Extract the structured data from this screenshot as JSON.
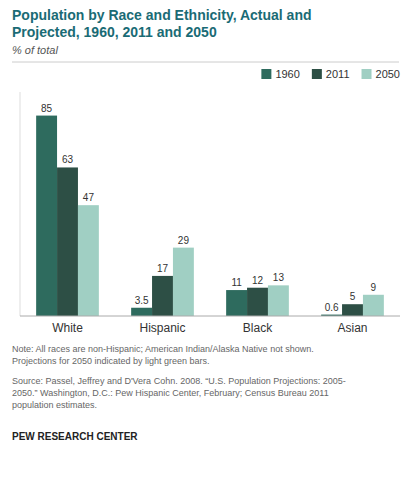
{
  "chart_data": {
    "type": "bar",
    "title": "Population by Race and Ethnicity, Actual and\nProjected, 1960, 2011 and 2050",
    "ylabel": "% of total",
    "categories": [
      "White",
      "Hispanic",
      "Black",
      "Asian"
    ],
    "series": [
      {
        "name": "1960",
        "color": "#2e6b5e",
        "values": [
          85,
          3.5,
          11,
          0.6
        ]
      },
      {
        "name": "2011",
        "color": "#2d4f45",
        "values": [
          63,
          17,
          12,
          5
        ]
      },
      {
        "name": "2050",
        "color": "#a0cfc3",
        "values": [
          47,
          29,
          13,
          9
        ]
      }
    ],
    "ylim": [
      0,
      95
    ],
    "data_labels": true,
    "tick_labels": "x",
    "grid": false,
    "legend": "upper right",
    "annotations": [
      "Note: All races are non-Hispanic; American Indian/Alaska Native not shown.\nProjections for 2050 indicated by light green bars.",
      "Source:  Passel, Jeffrey and D'Vera Cohn. 2008. “U.S. Population Projections: 2005-\n2050.” Washington, D.C.:  Pew Hispanic Center, February; Census Bureau 2011\npopulation estimates.",
      "PEW RESEARCH CENTER"
    ]
  }
}
